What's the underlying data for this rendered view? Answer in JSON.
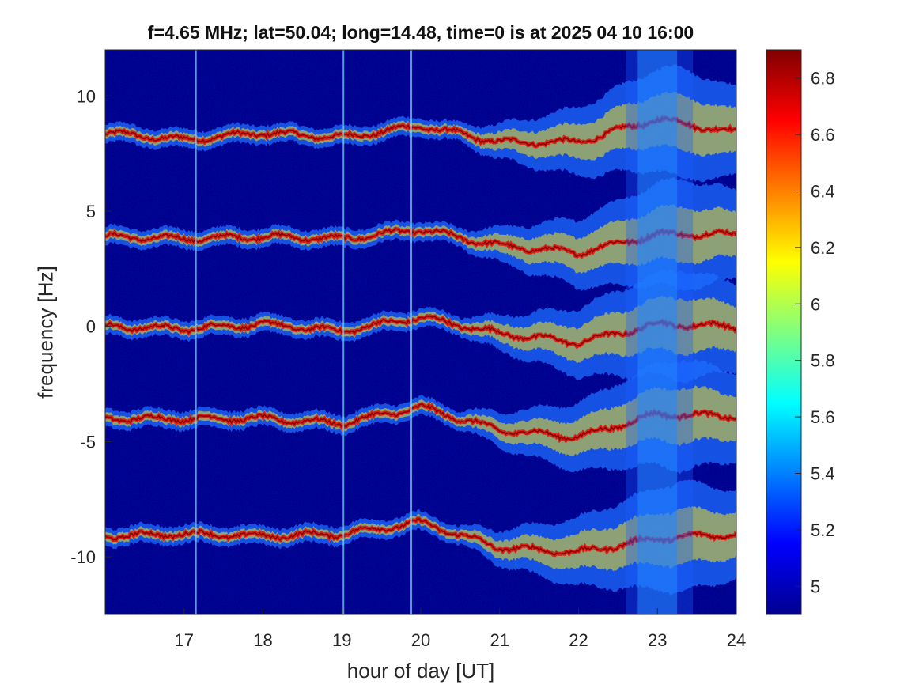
{
  "chart_data": [
    {
      "type": "heatmap",
      "title": "f=4.65 MHz;  lat=50.04; long=14.48, time=0 is at 2025 04 10 16:00",
      "xlabel": "hour of day [UT]",
      "ylabel": "frequency [Hz]",
      "xlim": [
        16,
        24
      ],
      "ylim": [
        -12.5,
        12
      ],
      "x_ticks": [
        "17",
        "18",
        "19",
        "20",
        "21",
        "22",
        "23",
        "24"
      ],
      "x_tick_values": [
        17,
        18,
        19,
        20,
        21,
        22,
        23,
        24
      ],
      "y_ticks": [
        "10",
        "5",
        "0",
        "-5",
        "-10"
      ],
      "y_tick_values": [
        10,
        5,
        0,
        -5,
        -10
      ],
      "colormap": "jet",
      "background_color": "#00008f",
      "bands": [
        {
          "center_hz": 8.3,
          "points": [
            [
              16.0,
              8.4
            ],
            [
              17.0,
              8.1
            ],
            [
              18.0,
              8.4
            ],
            [
              19.0,
              8.2
            ],
            [
              20.0,
              8.7
            ],
            [
              21.0,
              8.0
            ],
            [
              22.0,
              8.0
            ],
            [
              23.0,
              9.0
            ],
            [
              24.0,
              8.4
            ]
          ]
        },
        {
          "center_hz": 3.9,
          "points": [
            [
              16.0,
              3.9
            ],
            [
              17.0,
              3.8
            ],
            [
              18.0,
              3.9
            ],
            [
              19.0,
              3.8
            ],
            [
              20.0,
              4.2
            ],
            [
              21.0,
              3.5
            ],
            [
              22.0,
              3.2
            ],
            [
              23.0,
              4.0
            ],
            [
              24.0,
              4.0
            ]
          ]
        },
        {
          "center_hz": 0.0,
          "points": [
            [
              16.0,
              0.0
            ],
            [
              17.0,
              -0.1
            ],
            [
              18.0,
              0.1
            ],
            [
              19.0,
              -0.2
            ],
            [
              20.0,
              0.4
            ],
            [
              21.0,
              -0.3
            ],
            [
              22.0,
              -0.7
            ],
            [
              23.0,
              0.1
            ],
            [
              24.0,
              0.0
            ]
          ]
        },
        {
          "center_hz": -4.0,
          "points": [
            [
              16.0,
              -4.0
            ],
            [
              17.0,
              -4.0
            ],
            [
              18.0,
              -4.0
            ],
            [
              19.0,
              -4.2
            ],
            [
              20.0,
              -3.5
            ],
            [
              21.0,
              -4.5
            ],
            [
              22.0,
              -4.8
            ],
            [
              23.0,
              -3.8
            ],
            [
              24.0,
              -3.9
            ]
          ]
        },
        {
          "center_hz": -9.1,
          "points": [
            [
              16.0,
              -9.1
            ],
            [
              17.0,
              -9.0
            ],
            [
              18.0,
              -9.1
            ],
            [
              19.0,
              -9.0
            ],
            [
              20.0,
              -8.5
            ],
            [
              21.0,
              -9.6
            ],
            [
              22.0,
              -9.8
            ],
            [
              23.0,
              -9.2
            ],
            [
              24.0,
              -9.0
            ]
          ]
        }
      ],
      "vertical_streaks_hour": [
        17.15,
        19.02,
        19.88
      ]
    },
    {
      "type": "heatmap",
      "role": "colorbar",
      "ylim": [
        4.9,
        6.9
      ],
      "ticks": [
        "5",
        "5.2",
        "5.4",
        "5.6",
        "5.8",
        "6",
        "6.2",
        "6.4",
        "6.6",
        "6.8"
      ],
      "tick_values": [
        5.0,
        5.2,
        5.4,
        5.6,
        5.8,
        6.0,
        6.2,
        6.4,
        6.6,
        6.8
      ],
      "colormap": "jet"
    }
  ]
}
